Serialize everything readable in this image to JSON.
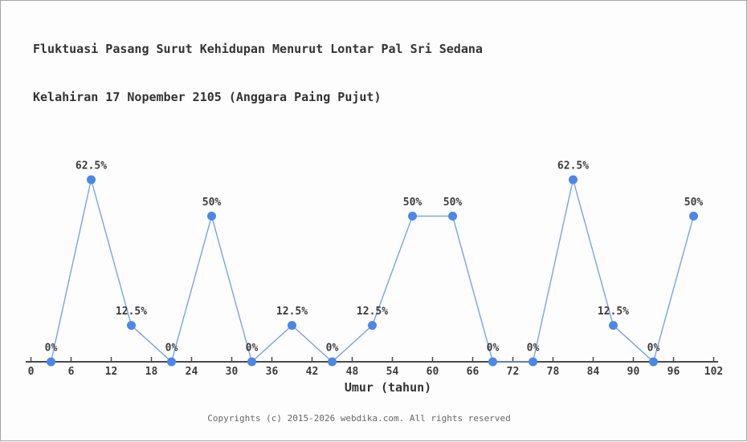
{
  "page": {
    "title_line1": "Fluktuasi Pasang Surut Kehidupan Menurut Lontar Pal Sri Sedana",
    "title_line2": "Kelahiran 17 Nopember 2105 (Anggara Paing Pujut)",
    "footer": "Copyrights (c) 2015-2026 webdika.com. All rights reserved"
  },
  "chart_data": {
    "type": "line",
    "title": "Fluktuasi Pasang Surut Kehidupan Menurut Lontar Pal Sri Sedana Kelahiran 17 Nopember 2105 (Anggara Paing Pujut)",
    "xlabel": "Umur (tahun)",
    "ylabel": "",
    "xlim": [
      0,
      102
    ],
    "ylim": [
      0,
      70
    ],
    "grid": false,
    "legend": "none",
    "x_ticks": [
      0,
      6,
      12,
      18,
      24,
      30,
      36,
      42,
      48,
      54,
      60,
      66,
      72,
      78,
      84,
      90,
      96,
      102
    ],
    "series": [
      {
        "name": "Fluktuasi Pasang Surut Kehidupan",
        "x": [
          3,
          9,
          15,
          21,
          27,
          33,
          39,
          45,
          51,
          57,
          63,
          69,
          75,
          81,
          87,
          93,
          99
        ],
        "values": [
          0,
          62.5,
          12.5,
          0,
          50,
          0,
          12.5,
          0,
          12.5,
          50,
          50,
          0,
          0,
          62.5,
          12.5,
          0,
          50
        ],
        "labels": [
          "0%",
          "62.5%",
          "12.5%",
          "0%",
          "50%",
          "0%",
          "12.5%",
          "0%",
          "12.5%",
          "50%",
          "50%",
          "0%",
          "0%",
          "62.5%",
          "12.5%",
          "0%",
          "50%"
        ]
      }
    ],
    "colors": {
      "point": "#4a87e8",
      "line": "#6d9eef",
      "axis": "#4a4a4a",
      "tick_label": "#3c3c3c",
      "point_label": "#3c3c3c",
      "title_text": "#333333",
      "footer_text": "#666666"
    }
  }
}
